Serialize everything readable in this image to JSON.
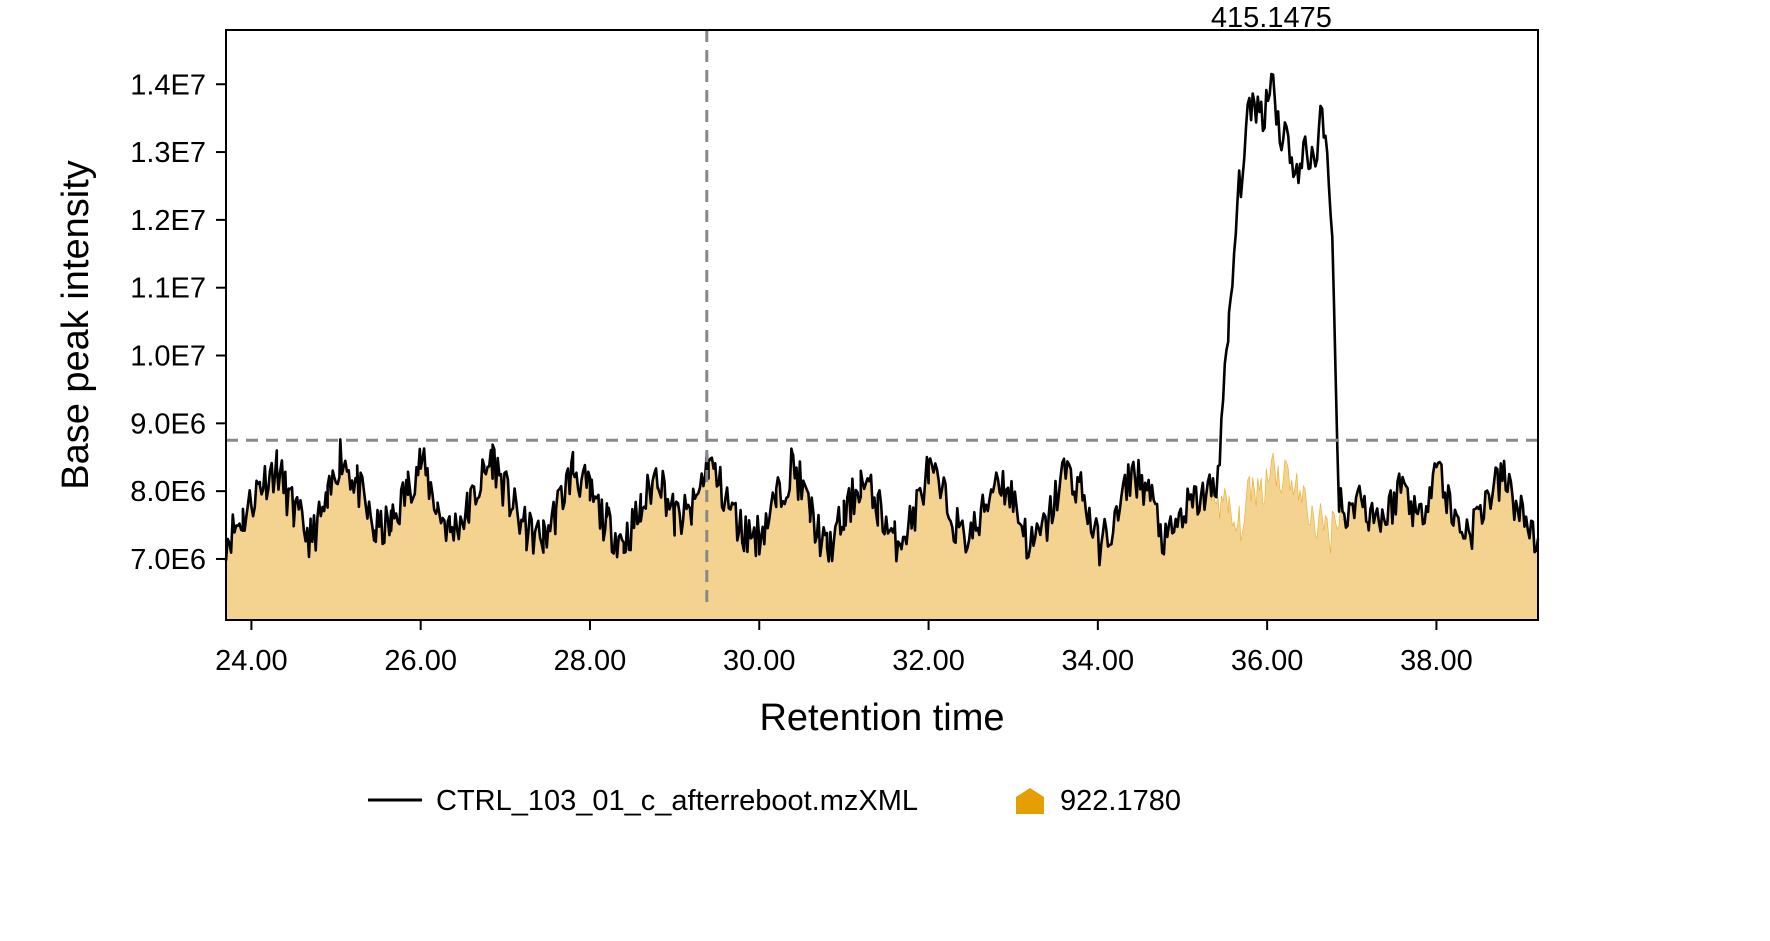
{
  "chart_data": {
    "type": "area",
    "xlabel": "Retention time",
    "ylabel": "Base peak intensity",
    "xlim": [
      23.7,
      39.2
    ],
    "ylim": [
      6100000,
      14800000
    ],
    "x_ticks": [
      {
        "value": 24,
        "label": "24.00"
      },
      {
        "value": 26,
        "label": "26.00"
      },
      {
        "value": 28,
        "label": "28.00"
      },
      {
        "value": 30,
        "label": "30.00"
      },
      {
        "value": 32,
        "label": "32.00"
      },
      {
        "value": 34,
        "label": "34.00"
      },
      {
        "value": 36,
        "label": "36.00"
      },
      {
        "value": 38,
        "label": "38.00"
      }
    ],
    "y_ticks": [
      {
        "value": 7000000,
        "label": "7.0E6"
      },
      {
        "value": 8000000,
        "label": "8.0E6"
      },
      {
        "value": 9000000,
        "label": "9.0E6"
      },
      {
        "value": 10000000,
        "label": "1.0E7"
      },
      {
        "value": 11000000,
        "label": "1.1E7"
      },
      {
        "value": 12000000,
        "label": "1.2E7"
      },
      {
        "value": 13000000,
        "label": "1.3E7"
      },
      {
        "value": 14000000,
        "label": "1.4E7"
      }
    ],
    "reference_lines": {
      "vertical_x": 29.38,
      "horizontal_y": 8750000
    },
    "peak_annotation": {
      "x": 36.05,
      "label": "415.1475"
    },
    "series": [
      {
        "name": "CTRL_103_01_c_afterreboot.mzXML",
        "style": "line",
        "color": "#000000",
        "x": [
          23.7,
          23.9,
          24.1,
          24.3,
          24.5,
          24.7,
          24.9,
          25.05,
          25.25,
          25.45,
          25.65,
          25.85,
          26.0,
          26.2,
          26.35,
          26.55,
          26.75,
          26.85,
          27.05,
          27.25,
          27.45,
          27.6,
          27.8,
          28.0,
          28.2,
          28.4,
          28.6,
          28.8,
          29.0,
          29.2,
          29.4,
          29.6,
          29.8,
          30.0,
          30.2,
          30.4,
          30.6,
          30.8,
          31.0,
          31.2,
          31.4,
          31.6,
          31.8,
          32.0,
          32.2,
          32.4,
          32.6,
          32.8,
          33.0,
          33.2,
          33.4,
          33.6,
          33.8,
          34.0,
          34.2,
          34.4,
          34.6,
          34.8,
          35.0,
          35.2,
          35.4,
          35.55,
          35.65,
          35.75,
          35.85,
          35.95,
          36.05,
          36.15,
          36.25,
          36.35,
          36.45,
          36.55,
          36.65,
          36.75,
          36.85,
          36.95,
          37.05,
          37.2,
          37.4,
          37.6,
          37.8,
          38.0,
          38.2,
          38.4,
          38.6,
          38.8,
          39.0,
          39.2
        ],
        "values": [
          7300000,
          7600000,
          8100000,
          8350000,
          7700000,
          7300000,
          7800000,
          8550000,
          8100000,
          7400000,
          7500000,
          8050000,
          8450000,
          7750000,
          7400000,
          7700000,
          8250000,
          8500000,
          7850000,
          7400000,
          7300000,
          7700000,
          8350000,
          7950000,
          7500000,
          7250000,
          7700000,
          8300000,
          7600000,
          7650000,
          8450000,
          7900000,
          7400000,
          7350000,
          7850000,
          8400000,
          7700000,
          7100000,
          7600000,
          8150000,
          7800000,
          7250000,
          7550000,
          8300000,
          7850000,
          7300000,
          7500000,
          8250000,
          7900000,
          7150000,
          7500000,
          8300000,
          8050000,
          7200000,
          7500000,
          8300000,
          8000000,
          7200000,
          7650000,
          7900000,
          8050000,
          10400000,
          12200000,
          13300000,
          13800000,
          13500000,
          14200000,
          13300000,
          13200000,
          12600000,
          13000000,
          12900000,
          13500000,
          12400000,
          8000000,
          7500000,
          8000000,
          7700000,
          7600000,
          8150000,
          7550000,
          8450000,
          7600000,
          7400000,
          7900000,
          8200000,
          7650000,
          7300000
        ]
      },
      {
        "name": "922.1780",
        "style": "area",
        "color": "#E69F00",
        "fill": "#F4D391",
        "x": [
          23.7,
          23.9,
          24.1,
          24.3,
          24.5,
          24.7,
          24.9,
          25.05,
          25.25,
          25.45,
          25.65,
          25.85,
          26.0,
          26.2,
          26.35,
          26.55,
          26.75,
          26.85,
          27.05,
          27.25,
          27.45,
          27.6,
          27.8,
          28.0,
          28.2,
          28.4,
          28.6,
          28.8,
          29.0,
          29.2,
          29.4,
          29.6,
          29.8,
          30.0,
          30.2,
          30.4,
          30.6,
          30.8,
          31.0,
          31.2,
          31.4,
          31.6,
          31.8,
          32.0,
          32.2,
          32.4,
          32.6,
          32.8,
          33.0,
          33.2,
          33.4,
          33.6,
          33.8,
          34.0,
          34.2,
          34.4,
          34.6,
          34.8,
          35.0,
          35.2,
          35.4,
          35.55,
          35.65,
          35.75,
          35.85,
          35.95,
          36.05,
          36.15,
          36.25,
          36.35,
          36.45,
          36.55,
          36.65,
          36.75,
          36.85,
          36.95,
          37.05,
          37.2,
          37.4,
          37.6,
          37.8,
          38.0,
          38.2,
          38.4,
          38.6,
          38.8,
          39.0,
          39.2
        ],
        "values": [
          7300000,
          7600000,
          8100000,
          8350000,
          7700000,
          7300000,
          7800000,
          8550000,
          8100000,
          7400000,
          7500000,
          8050000,
          8450000,
          7750000,
          7400000,
          7700000,
          8250000,
          8500000,
          7850000,
          7400000,
          7300000,
          7700000,
          8350000,
          7950000,
          7500000,
          7250000,
          7700000,
          8300000,
          7600000,
          7650000,
          8450000,
          7900000,
          7400000,
          7350000,
          7850000,
          8400000,
          7700000,
          7100000,
          7600000,
          8150000,
          7800000,
          7250000,
          7550000,
          8300000,
          7850000,
          7300000,
          7500000,
          8250000,
          7900000,
          7150000,
          7500000,
          8300000,
          8050000,
          7200000,
          7500000,
          8300000,
          8000000,
          7200000,
          7650000,
          7900000,
          7950000,
          7700000,
          7400000,
          7800000,
          8100000,
          8000000,
          8500000,
          8200000,
          8300000,
          8050000,
          7800000,
          7600000,
          7500000,
          7400000,
          7800000,
          7500000,
          8000000,
          7700000,
          7600000,
          8150000,
          7550000,
          8450000,
          7600000,
          7400000,
          7900000,
          8200000,
          7650000,
          7300000
        ]
      }
    ],
    "legend": {
      "placement": "bottom",
      "entries": [
        {
          "label": "CTRL_103_01_c_afterreboot.mzXML",
          "symbol": "line",
          "color": "#000000"
        },
        {
          "label": "922.1780",
          "symbol": "pentagon",
          "color": "#E69F00"
        }
      ]
    }
  }
}
